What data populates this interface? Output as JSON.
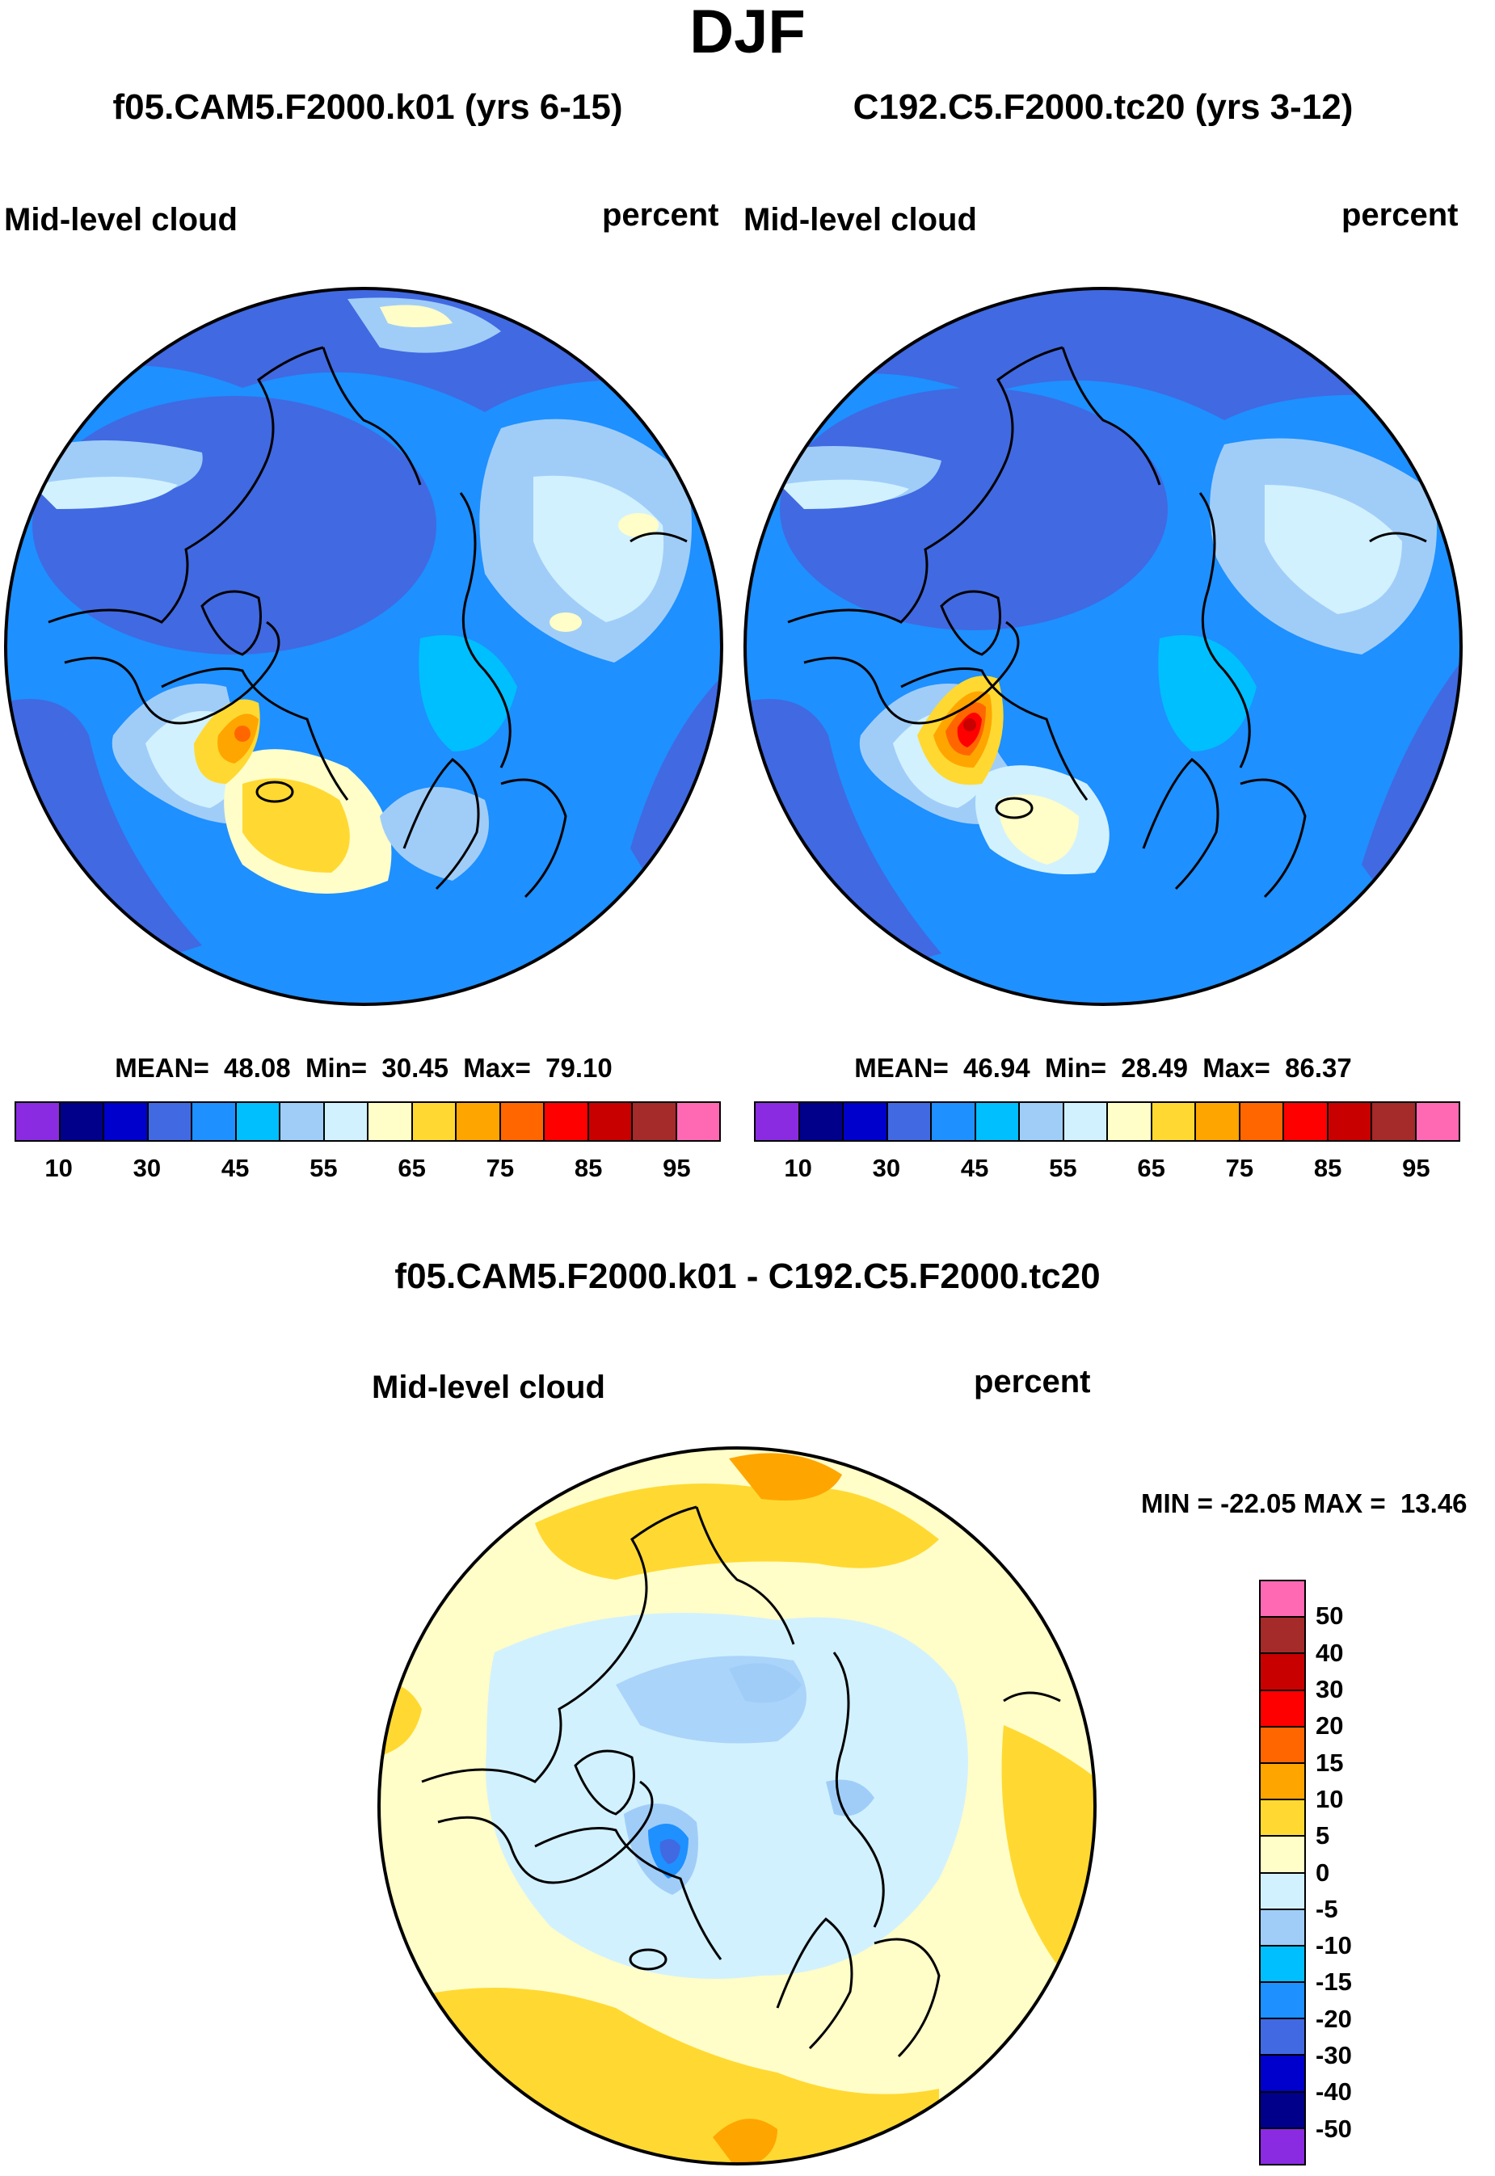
{
  "figure": {
    "title": "DJF",
    "field_name": "Mid-level cloud",
    "units": "percent"
  },
  "panels": [
    {
      "case": "f05.CAM5.F2000.k01 (yrs 6-15)",
      "field": "Mid-level cloud",
      "units": "percent",
      "stats": "MEAN=  48.08  Min=  30.45  Max=  79.10",
      "mean": 48.08,
      "min": 30.45,
      "max": 79.1
    },
    {
      "case": "C192.C5.F2000.tc20 (yrs 3-12)",
      "field": "Mid-level cloud",
      "units": "percent",
      "stats": "MEAN=  46.94  Min=  28.49  Max=  86.37",
      "mean": 46.94,
      "min": 28.49,
      "max": 86.37
    }
  ],
  "diff": {
    "title": "f05.CAM5.F2000.k01 - C192.C5.F2000.tc20",
    "field": "Mid-level cloud",
    "units": "percent",
    "stats": "MIN = -22.05 MAX =  13.46",
    "min": -22.05,
    "max": 13.46
  },
  "abs_colorbar": {
    "colors": [
      "#8a2be2",
      "#00008b",
      "#0000cd",
      "#4169e1",
      "#1e90ff",
      "#00bfff",
      "#a0cdf8",
      "#d2f1ff",
      "#fffdc8",
      "#ffd931",
      "#ffa500",
      "#ff6600",
      "#ff0000",
      "#c80000",
      "#a52a2a",
      "#ff69b4"
    ],
    "tick_labels": [
      "10",
      "30",
      "45",
      "55",
      "65",
      "75",
      "85",
      "95"
    ]
  },
  "diff_colorbar": {
    "colors_top_to_bottom": [
      "#ff69b4",
      "#a52a2a",
      "#c80000",
      "#ff0000",
      "#ff6600",
      "#ffa500",
      "#ffd931",
      "#fffdc8",
      "#d2f1ff",
      "#a0cdf8",
      "#00bfff",
      "#1e90ff",
      "#4169e1",
      "#0000cd",
      "#00008b",
      "#8a2be2"
    ],
    "tick_labels_top_to_bottom": [
      "50",
      "40",
      "30",
      "20",
      "15",
      "10",
      "5",
      "0",
      "-5",
      "-10",
      "-15",
      "-20",
      "-30",
      "-40",
      "-50"
    ]
  },
  "chart_data": [
    {
      "type": "heatmap",
      "title": "f05.CAM5.F2000.k01 (yrs 6-15)",
      "variable": "Mid-level cloud",
      "units": "percent",
      "season": "DJF",
      "projection": "polar stereographic (north pole)",
      "levels": [
        10,
        30,
        45,
        55,
        65,
        75,
        85,
        95
      ],
      "mean": 48.08,
      "min": 30.45,
      "max": 79.1
    },
    {
      "type": "heatmap",
      "title": "C192.C5.F2000.tc20 (yrs 3-12)",
      "variable": "Mid-level cloud",
      "units": "percent",
      "season": "DJF",
      "projection": "polar stereographic (north pole)",
      "levels": [
        10,
        30,
        45,
        55,
        65,
        75,
        85,
        95
      ],
      "mean": 46.94,
      "min": 28.49,
      "max": 86.37
    },
    {
      "type": "heatmap",
      "title": "f05.CAM5.F2000.k01 - C192.C5.F2000.tc20",
      "variable": "Mid-level cloud",
      "units": "percent",
      "season": "DJF",
      "projection": "polar stereographic (north pole)",
      "levels": [
        -50,
        -40,
        -30,
        -20,
        -15,
        -10,
        -5,
        0,
        5,
        10,
        15,
        20,
        30,
        40,
        50
      ],
      "min": -22.05,
      "max": 13.46
    }
  ]
}
